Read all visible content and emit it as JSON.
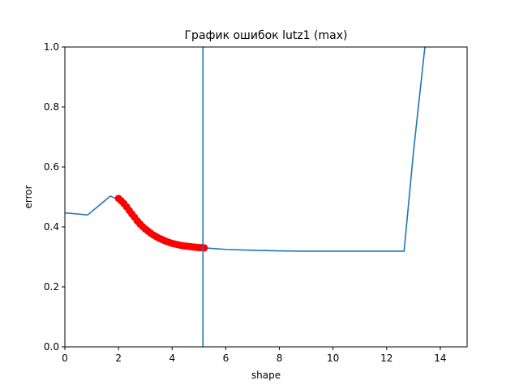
{
  "chart_data": {
    "type": "line",
    "title": "График ошибок lutz1 (max)",
    "xlabel": "shape",
    "ylabel": "error",
    "xlim": [
      0,
      15
    ],
    "ylim": [
      0,
      1.0
    ],
    "xticks": [
      0,
      2,
      4,
      6,
      8,
      10,
      12,
      14
    ],
    "yticks": [
      0.0,
      0.2,
      0.4,
      0.6,
      0.8,
      1.0
    ],
    "xtick_labels": [
      "0",
      "2",
      "4",
      "6",
      "8",
      "10",
      "12",
      "14"
    ],
    "ytick_labels": [
      "0.0",
      "0.2",
      "0.4",
      "0.6",
      "0.8",
      "1.0"
    ],
    "grid": false,
    "series": [
      {
        "type": "line",
        "color": "#1f77b4",
        "x": [
          0,
          0.85,
          1.7,
          2.0,
          2.5,
          3.0,
          3.5,
          4.0,
          4.5,
          5.0,
          5.2,
          6.0,
          7.0,
          8.0,
          9.0,
          10.0,
          11.0,
          12.0,
          12.65,
          13.0,
          13.45
        ],
        "y": [
          0.447,
          0.44,
          0.503,
          0.49,
          0.43,
          0.395,
          0.37,
          0.353,
          0.342,
          0.335,
          0.33,
          0.325,
          0.322,
          0.32,
          0.319,
          0.319,
          0.319,
          0.319,
          0.319,
          0.65,
          1.02
        ]
      },
      {
        "type": "scatter",
        "color": "#ff0000",
        "x": [
          2.0,
          2.1,
          2.2,
          2.3,
          2.4,
          2.5,
          2.6,
          2.7,
          2.8,
          2.9,
          3.0,
          3.1,
          3.2,
          3.3,
          3.4,
          3.5,
          3.6,
          3.7,
          3.8,
          3.9,
          4.0,
          4.1,
          4.2,
          4.3,
          4.4,
          4.5,
          4.6,
          4.7,
          4.8,
          4.9,
          5.0,
          5.1,
          5.2
        ],
        "y": [
          0.495,
          0.487,
          0.478,
          0.467,
          0.455,
          0.443,
          0.432,
          0.42,
          0.41,
          0.401,
          0.393,
          0.386,
          0.379,
          0.373,
          0.368,
          0.363,
          0.359,
          0.355,
          0.351,
          0.348,
          0.345,
          0.343,
          0.341,
          0.339,
          0.337,
          0.336,
          0.335,
          0.334,
          0.333,
          0.332,
          0.331,
          0.331,
          0.33
        ]
      }
    ],
    "vline": {
      "x": 5.15,
      "color": "#1f77b4"
    }
  }
}
